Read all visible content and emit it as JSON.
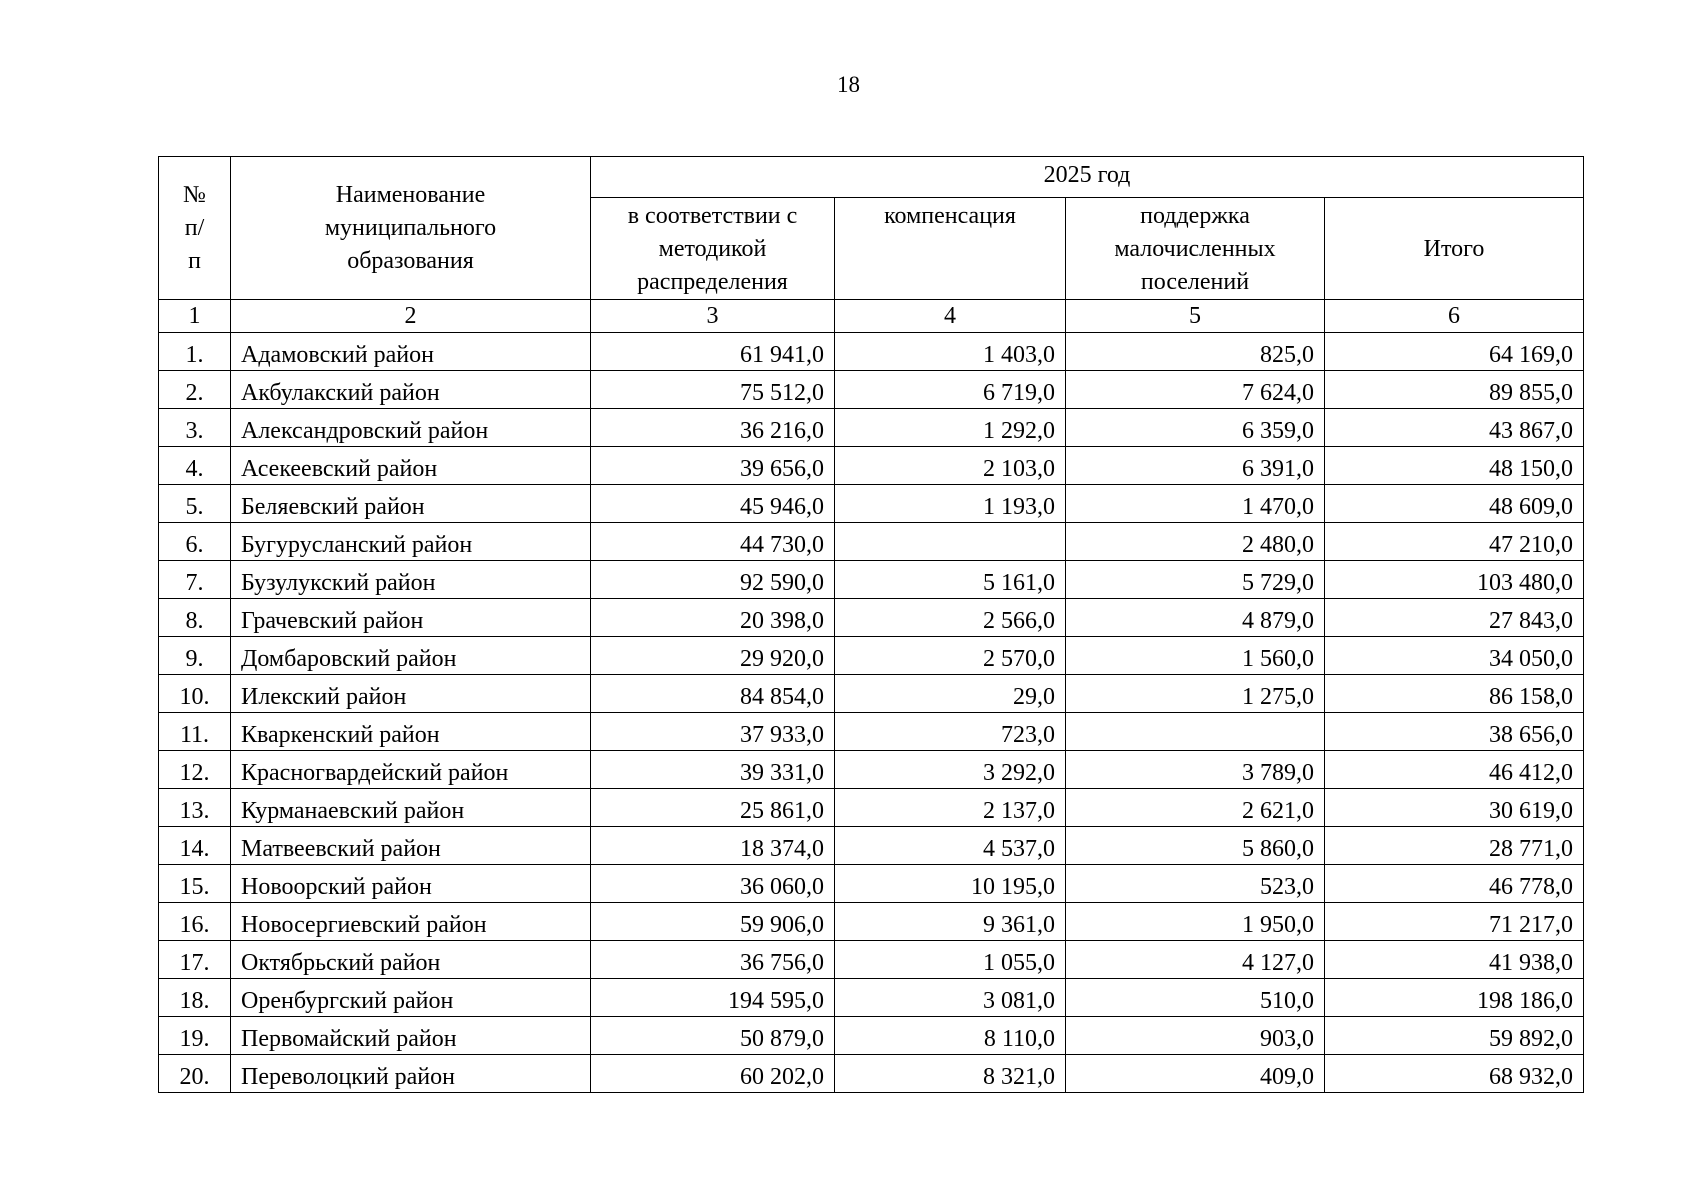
{
  "page_number": "18",
  "table": {
    "header": {
      "number": "№ п/п",
      "name": "Наименование муниципального образования",
      "year": "2025 год",
      "columns": [
        "в соответствии с методикой распределения",
        "компенсация",
        "поддержка малочисленных поселений",
        "Итого"
      ],
      "column_numbers": [
        "1",
        "2",
        "3",
        "4",
        "5",
        "6"
      ]
    },
    "rows": [
      [
        "1.",
        "Адамовский район",
        "61 941,0",
        "1 403,0",
        "825,0",
        "64 169,0"
      ],
      [
        "2.",
        "Акбулакский район",
        "75 512,0",
        "6 719,0",
        "7 624,0",
        "89 855,0"
      ],
      [
        "3.",
        "Александровский район",
        "36 216,0",
        "1 292,0",
        "6 359,0",
        "43 867,0"
      ],
      [
        "4.",
        "Асекеевский район",
        "39 656,0",
        "2 103,0",
        "6 391,0",
        "48 150,0"
      ],
      [
        "5.",
        "Беляевский район",
        "45 946,0",
        "1 193,0",
        "1 470,0",
        "48 609,0"
      ],
      [
        "6.",
        "Бугурусланский район",
        "44 730,0",
        null,
        "2 480,0",
        "47 210,0"
      ],
      [
        "7.",
        "Бузулукский район",
        "92 590,0",
        "5 161,0",
        "5 729,0",
        "103 480,0"
      ],
      [
        "8.",
        "Грачевский район",
        "20 398,0",
        "2 566,0",
        "4 879,0",
        "27 843,0"
      ],
      [
        "9.",
        "Домбаровский район",
        "29 920,0",
        "2 570,0",
        "1 560,0",
        "34 050,0"
      ],
      [
        "10.",
        "Илекский район",
        "84 854,0",
        "29,0",
        "1 275,0",
        "86 158,0"
      ],
      [
        "11.",
        "Кваркенский район",
        "37 933,0",
        "723,0",
        null,
        "38 656,0"
      ],
      [
        "12.",
        "Красногвардейский район",
        "39 331,0",
        "3 292,0",
        "3 789,0",
        "46 412,0"
      ],
      [
        "13.",
        "Курманаевский район",
        "25 861,0",
        "2 137,0",
        "2 621,0",
        "30 619,0"
      ],
      [
        "14.",
        "Матвеевский район",
        "18 374,0",
        "4 537,0",
        "5 860,0",
        "28 771,0"
      ],
      [
        "15.",
        "Новоорский район",
        "36 060,0",
        "10 195,0",
        "523,0",
        "46 778,0"
      ],
      [
        "16.",
        "Новосергиевский район",
        "59 906,0",
        "9 361,0",
        "1 950,0",
        "71 217,0"
      ],
      [
        "17.",
        "Октябрьский район",
        "36 756,0",
        "1 055,0",
        "4 127,0",
        "41 938,0"
      ],
      [
        "18.",
        "Оренбургский район",
        "194 595,0",
        "3 081,0",
        "510,0",
        "198 186,0"
      ],
      [
        "19.",
        "Первомайский район",
        "50 879,0",
        "8 110,0",
        "903,0",
        "59 892,0"
      ],
      [
        "20.",
        "Переволоцкий район",
        "60 202,0",
        "8 321,0",
        "409,0",
        "68 932,0"
      ]
    ]
  }
}
